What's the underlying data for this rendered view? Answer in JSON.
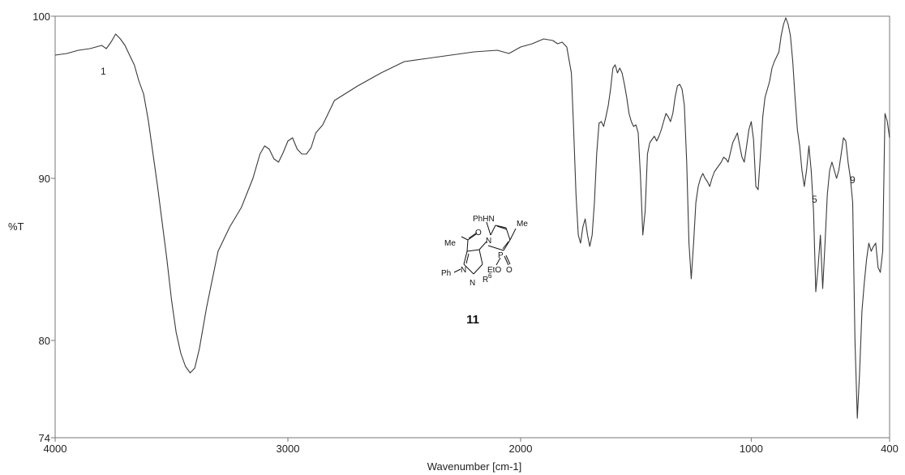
{
  "chart_data": {
    "type": "line",
    "xlabel": "Wavenumber [cm-1]",
    "ylabel": "%T",
    "xlim": [
      4000,
      400
    ],
    "ylim": [
      74,
      100
    ],
    "x_ticks": [
      4000,
      3000,
      2000,
      1000,
      400
    ],
    "y_ticks": [
      74,
      80,
      90,
      100
    ],
    "grid": false,
    "series": [
      {
        "x": [
          4000,
          3950,
          3900,
          3850,
          3800,
          3780,
          3760,
          3740,
          3720,
          3700,
          3680,
          3660,
          3640,
          3620,
          3600,
          3560,
          3520,
          3500,
          3480,
          3460,
          3440,
          3420,
          3400,
          3380,
          3350,
          3300,
          3250,
          3200,
          3150,
          3120,
          3100,
          3080,
          3060,
          3040,
          3020,
          3000,
          2980,
          2960,
          2940,
          2920,
          2900,
          2880,
          2850,
          2800,
          2700,
          2600,
          2500,
          2400,
          2300,
          2200,
          2100,
          2050,
          2000,
          1950,
          1900,
          1860,
          1840,
          1820,
          1800,
          1780,
          1770,
          1760,
          1750,
          1740,
          1730,
          1720,
          1710,
          1700,
          1690,
          1680,
          1670,
          1660,
          1650,
          1640,
          1630,
          1620,
          1610,
          1600,
          1590,
          1580,
          1570,
          1560,
          1550,
          1540,
          1530,
          1520,
          1510,
          1500,
          1490,
          1480,
          1470,
          1460,
          1450,
          1440,
          1430,
          1420,
          1410,
          1400,
          1390,
          1380,
          1370,
          1360,
          1350,
          1340,
          1330,
          1320,
          1310,
          1300,
          1290,
          1280,
          1270,
          1260,
          1250,
          1240,
          1230,
          1220,
          1210,
          1200,
          1190,
          1180,
          1170,
          1160,
          1150,
          1140,
          1130,
          1120,
          1110,
          1100,
          1090,
          1080,
          1070,
          1060,
          1050,
          1040,
          1030,
          1020,
          1010,
          1000,
          990,
          980,
          970,
          960,
          950,
          940,
          930,
          920,
          910,
          900,
          890,
          880,
          870,
          860,
          850,
          840,
          830,
          820,
          810,
          800,
          790,
          780,
          770,
          760,
          750,
          740,
          730,
          720,
          710,
          700,
          690,
          680,
          670,
          660,
          650,
          640,
          630,
          620,
          610,
          600,
          590,
          580,
          570,
          560,
          550,
          540,
          530,
          520,
          510,
          500,
          490,
          480,
          470,
          460,
          450,
          440,
          430,
          420,
          410,
          400
        ],
        "y": [
          97.6,
          97.7,
          97.9,
          98.0,
          98.2,
          98.0,
          98.4,
          98.9,
          98.6,
          98.2,
          97.6,
          97.0,
          96.0,
          95.2,
          93.6,
          89.5,
          85.0,
          82.5,
          80.5,
          79.2,
          78.4,
          78.0,
          78.3,
          79.5,
          82.0,
          85.5,
          87.0,
          88.2,
          90.0,
          91.5,
          92.0,
          91.8,
          91.2,
          91.0,
          91.6,
          92.3,
          92.5,
          91.8,
          91.5,
          91.5,
          91.9,
          92.8,
          93.3,
          94.8,
          95.7,
          96.5,
          97.2,
          97.4,
          97.6,
          97.8,
          97.9,
          97.7,
          98.1,
          98.3,
          98.6,
          98.5,
          98.3,
          98.4,
          98.1,
          96.5,
          93.0,
          89.0,
          86.5,
          86.0,
          87.0,
          87.5,
          86.5,
          85.8,
          86.5,
          88.5,
          91.5,
          93.4,
          93.5,
          93.2,
          93.8,
          94.5,
          95.5,
          96.8,
          97.0,
          96.5,
          96.8,
          96.5,
          95.8,
          95.0,
          94.0,
          93.5,
          93.2,
          93.3,
          92.8,
          90.0,
          86.5,
          88.0,
          91.5,
          92.2,
          92.4,
          92.6,
          92.3,
          92.6,
          93.0,
          93.5,
          94.0,
          93.8,
          93.5,
          94.0,
          95.0,
          95.7,
          95.8,
          95.5,
          94.5,
          91.0,
          86.0,
          83.8,
          86.0,
          88.5,
          89.5,
          90.0,
          90.3,
          90.0,
          89.8,
          89.5,
          90.0,
          90.4,
          90.6,
          90.8,
          91.0,
          91.3,
          91.2,
          91.0,
          91.6,
          92.2,
          92.5,
          92.8,
          92.0,
          91.3,
          91.0,
          92.0,
          93.0,
          93.5,
          92.4,
          89.5,
          89.3,
          91.5,
          93.8,
          95.0,
          95.5,
          96.0,
          96.8,
          97.2,
          97.5,
          97.8,
          98.8,
          99.5,
          99.9,
          99.5,
          98.8,
          97.2,
          95.0,
          93.0,
          92.0,
          90.5,
          89.5,
          90.5,
          92.0,
          90.5,
          88.0,
          83.0,
          84.5,
          86.5,
          83.2,
          86.0,
          89.0,
          90.5,
          91.0,
          90.5,
          90.0,
          90.5,
          91.5,
          92.5,
          92.3,
          91.0,
          90.0,
          88.5,
          80.0,
          75.2,
          78.0,
          81.8,
          83.5,
          85.0,
          86.0,
          85.5,
          85.8,
          86.0,
          84.5,
          84.2,
          85.5,
          94.0,
          93.5,
          92.5
        ]
      }
    ],
    "annotations": [
      "1",
      "5",
      "9"
    ]
  },
  "structure": {
    "labels": {
      "phhn": "PhHN",
      "me_top": "Me",
      "me_left": "Me",
      "n_ring": "N",
      "p": "P",
      "eto": "EtO",
      "o": "O",
      "ph_n": "Ph",
      "n1": "N",
      "n2": "N",
      "r6": "R",
      "r6_sup": "6",
      "o_acyl": "O"
    },
    "compound_number": "11"
  }
}
